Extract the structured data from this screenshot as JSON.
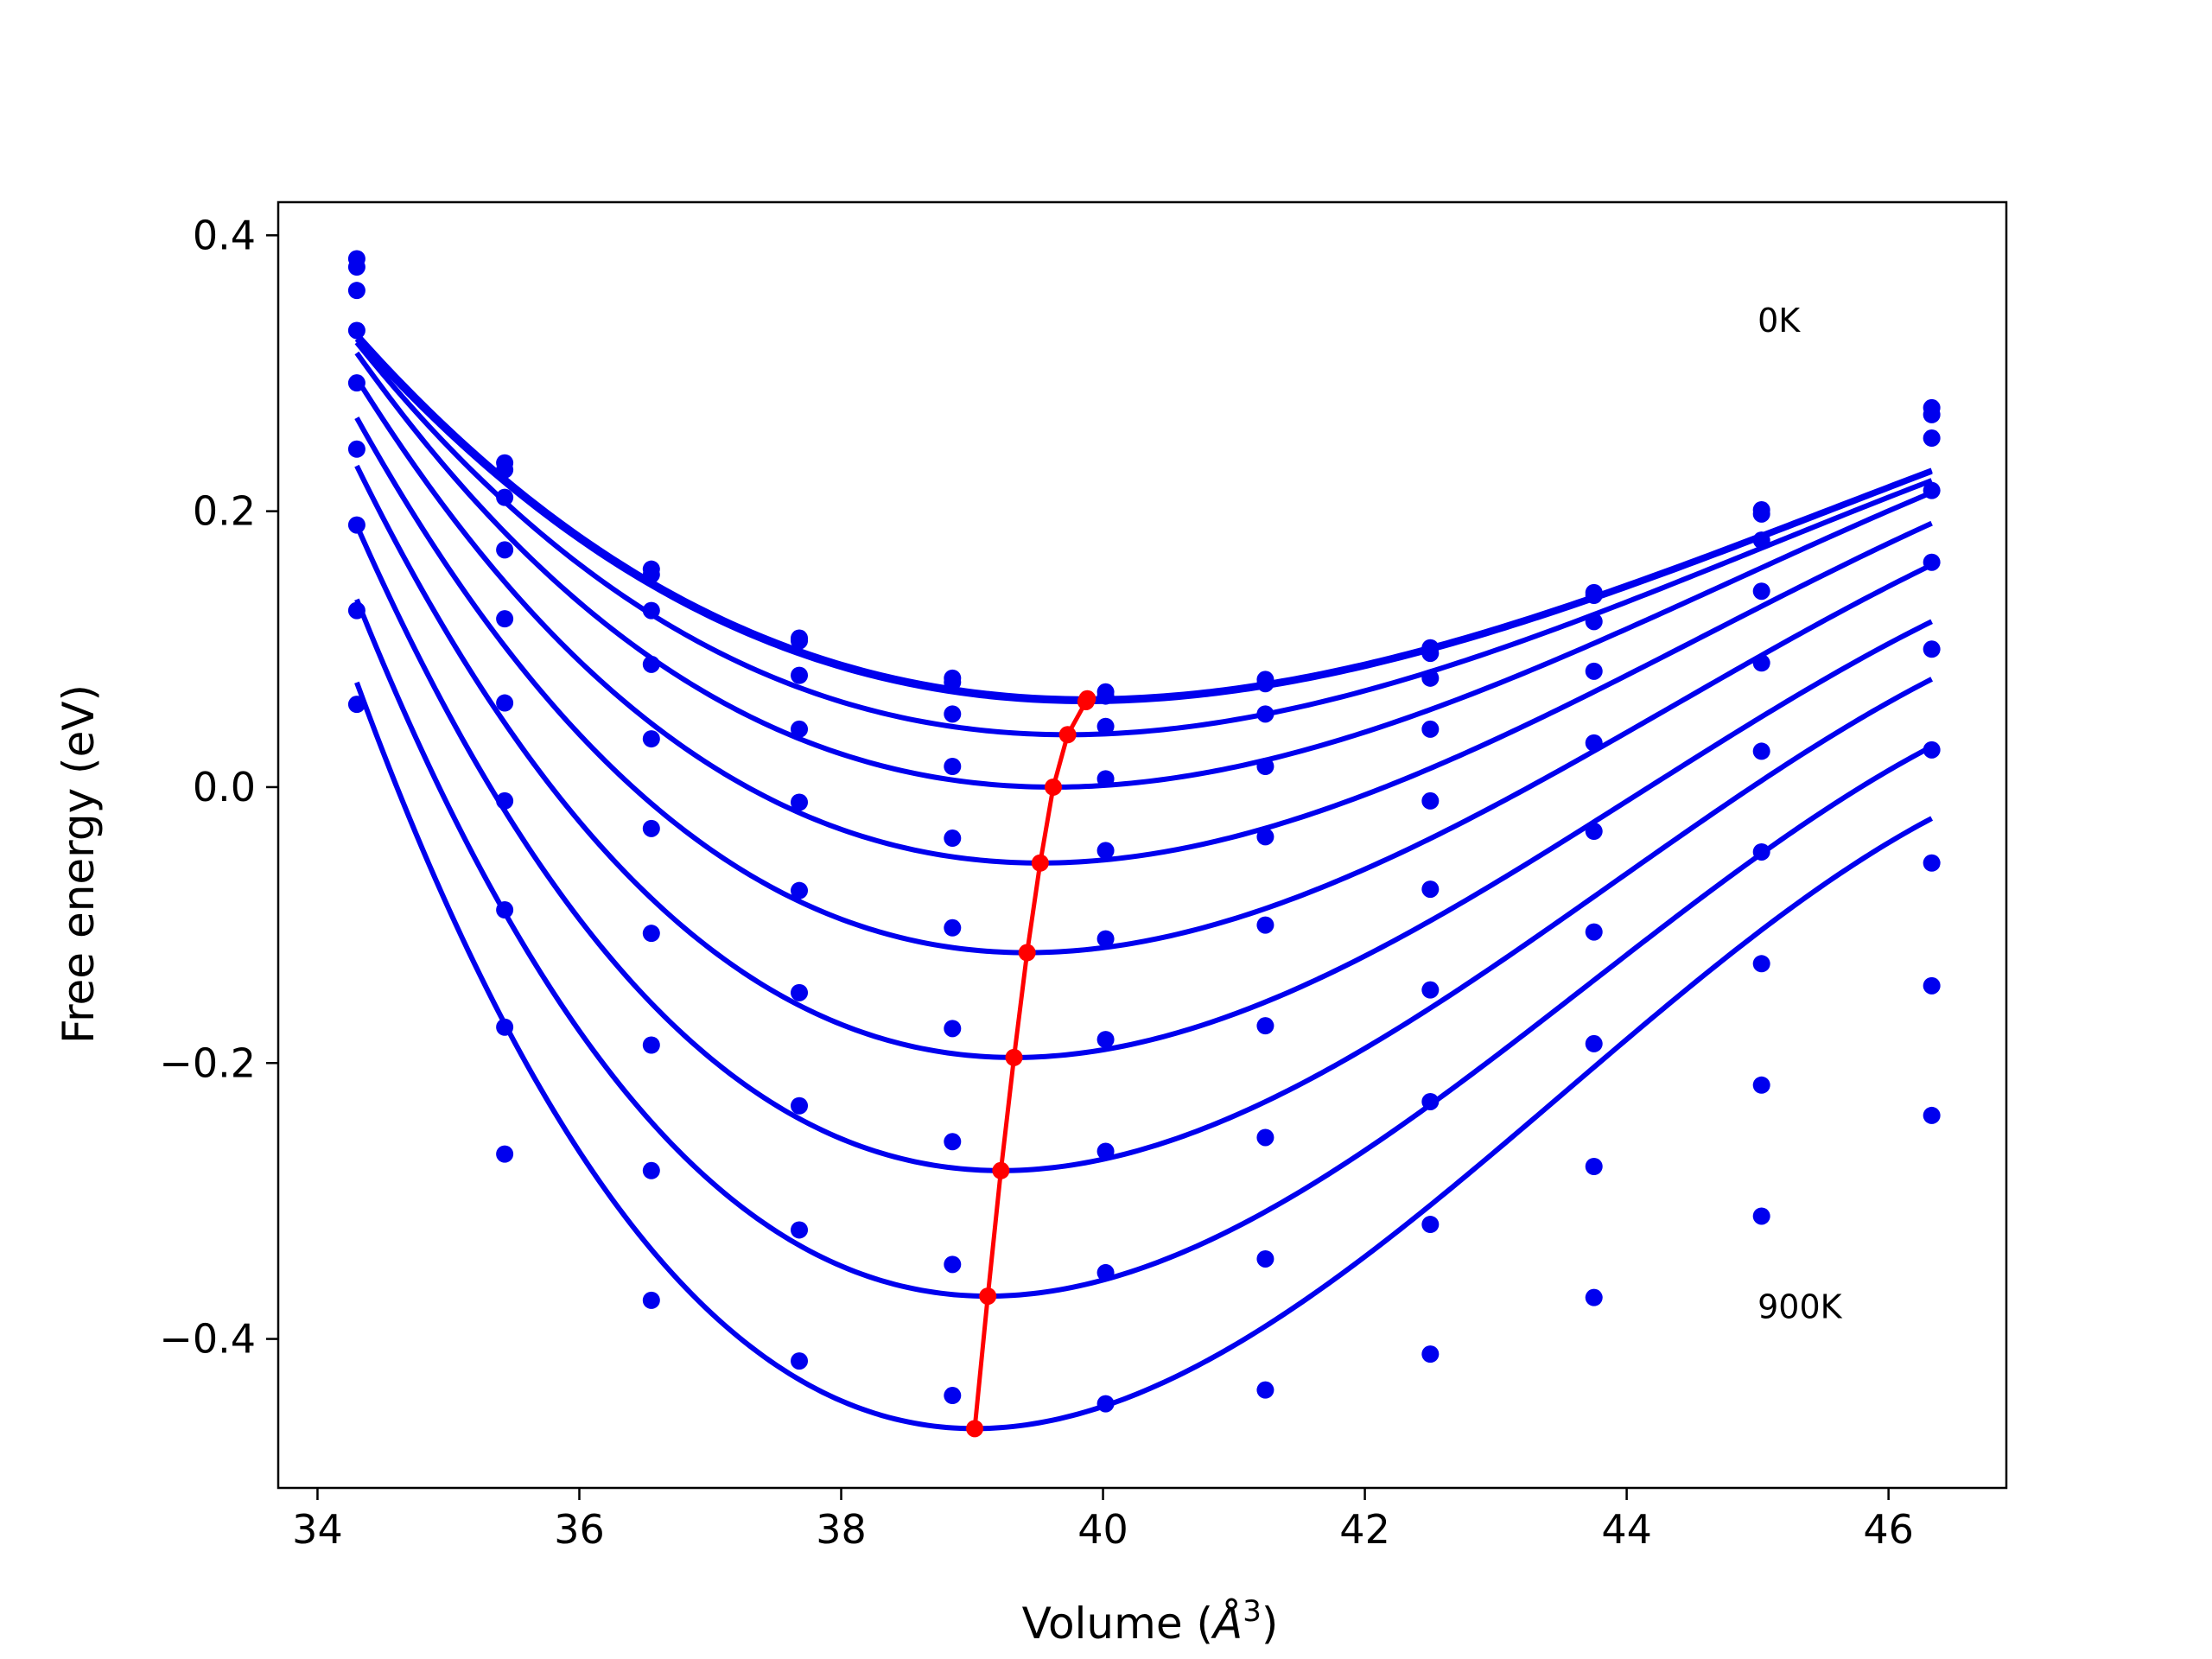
{
  "chart_data": {
    "type": "line",
    "title": "",
    "xlabel": "Volume (",
    "xlabel_symbol": "Å",
    "xlabel_exp": "3",
    "xlabel_close": ")",
    "ylabel": "Free energy (eV)",
    "xlim": [
      33.7,
      46.9
    ],
    "ylim": [
      -0.508,
      0.424
    ],
    "xticks": [
      34,
      36,
      38,
      40,
      42,
      44,
      46
    ],
    "xtick_labels": [
      "34",
      "36",
      "38",
      "40",
      "42",
      "44",
      "46"
    ],
    "yticks": [
      -0.4,
      -0.2,
      0.0,
      0.2,
      0.4
    ],
    "ytick_labels": [
      "−0.4",
      "−0.2",
      "0.0",
      "0.2",
      "0.4"
    ],
    "grid": false,
    "annotations": [
      {
        "text": "0K",
        "x": 45.0,
        "y": 0.33
      },
      {
        "text": "900K",
        "x": 45.0,
        "y": -0.385
      }
    ],
    "colors": {
      "curves": "#0000ee",
      "points": "#0000ee",
      "minima": "#ff0000",
      "axes": "#000000"
    },
    "x_points": [
      34.3,
      35.43,
      36.55,
      37.68,
      38.85,
      40.02,
      41.24,
      42.5,
      43.75,
      45.03,
      46.33
    ],
    "series": [
      {
        "V0": 39.88,
        "E0": 0.064,
        "a": 0.0064,
        "b": -0.000375,
        "y": [
          0.383,
          0.235,
          0.158,
          0.108,
          0.079,
          0.069,
          0.078,
          0.101,
          0.141,
          0.201,
          0.275
        ]
      },
      {
        "V0": 39.87,
        "E0": 0.062,
        "a": 0.0064,
        "b": -0.000372,
        "y": [
          0.377,
          0.23,
          0.154,
          0.106,
          0.076,
          0.066,
          0.075,
          0.097,
          0.139,
          0.198,
          0.27
        ]
      },
      {
        "V0": 39.73,
        "E0": 0.038,
        "a": 0.0072,
        "b": -0.00045,
        "y": [
          0.36,
          0.21,
          0.128,
          0.081,
          0.053,
          0.044,
          0.053,
          0.079,
          0.12,
          0.179,
          0.253
        ]
      },
      {
        "V0": 39.62,
        "E0": 0.0,
        "a": 0.0083,
        "b": -0.00053,
        "y": [
          0.331,
          0.172,
          0.089,
          0.042,
          0.015,
          0.006,
          0.015,
          0.042,
          0.084,
          0.142,
          0.215
        ]
      },
      {
        "V0": 39.52,
        "E0": -0.055,
        "a": 0.0096,
        "b": -0.00063,
        "y": [
          0.293,
          0.122,
          0.035,
          -0.011,
          -0.037,
          -0.046,
          -0.036,
          -0.01,
          0.032,
          0.09,
          0.163
        ]
      },
      {
        "V0": 39.42,
        "E0": -0.12,
        "a": 0.011,
        "b": -0.00074,
        "y": [
          0.245,
          0.061,
          -0.03,
          -0.075,
          -0.102,
          -0.11,
          -0.1,
          -0.074,
          -0.032,
          0.026,
          0.1
        ]
      },
      {
        "V0": 39.32,
        "E0": -0.196,
        "a": 0.0126,
        "b": -0.00088,
        "y": [
          0.19,
          -0.01,
          -0.106,
          -0.149,
          -0.175,
          -0.183,
          -0.173,
          -0.147,
          -0.105,
          -0.047,
          0.027
        ]
      },
      {
        "V0": 39.22,
        "E0": -0.278,
        "a": 0.0143,
        "b": -0.00102,
        "y": [
          0.128,
          -0.089,
          -0.187,
          -0.231,
          -0.257,
          -0.264,
          -0.254,
          -0.228,
          -0.186,
          -0.128,
          -0.055
        ]
      },
      {
        "V0": 39.12,
        "E0": -0.369,
        "a": 0.0161,
        "b": -0.00117,
        "y": [
          0.06,
          -0.174,
          -0.278,
          -0.321,
          -0.346,
          -0.352,
          -0.342,
          -0.317,
          -0.275,
          -0.216,
          -0.144
        ]
      },
      {
        "V0": 39.02,
        "E0": -0.465,
        "a": 0.018,
        "b": -0.00133,
        "y": [
          null,
          -0.266,
          -0.372,
          -0.416,
          -0.441,
          -0.447,
          -0.437,
          -0.411,
          -0.37,
          -0.311,
          -0.238
        ]
      }
    ],
    "curve_x_range": [
      34.3,
      46.33
    ],
    "minima": {
      "x": [
        39.02,
        39.12,
        39.22,
        39.32,
        39.42,
        39.52,
        39.62,
        39.73,
        39.87,
        39.88
      ],
      "y": [
        -0.465,
        -0.369,
        -0.278,
        -0.196,
        -0.12,
        -0.055,
        0.0,
        0.038,
        0.062,
        0.064
      ]
    }
  }
}
